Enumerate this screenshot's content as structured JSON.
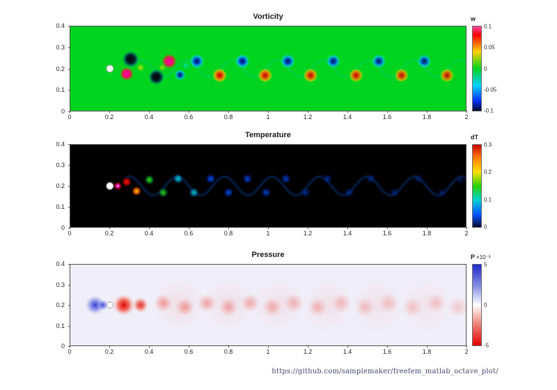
{
  "figure": {
    "footer_url": "https://github.com/samplemaker/freefem_matlab_octave_plot/"
  },
  "plots": [
    {
      "title": "Vorticity",
      "colorbar_label": "w"
    },
    {
      "title": "Temperature",
      "colorbar_label": "dT"
    },
    {
      "title": "Pressure",
      "colorbar_label": "P",
      "colorbar_multiplier": "×10⁻³"
    }
  ],
  "chart_data": [
    {
      "type": "heatmap",
      "title": "Vorticity",
      "field": "vorticity",
      "xlim": [
        0,
        2
      ],
      "ylim": [
        0,
        0.4
      ],
      "xticks": [
        "0",
        "0.2",
        "0.4",
        "0.6",
        "0.8",
        "1",
        "1.2",
        "1.4",
        "1.6",
        "1.8",
        "2"
      ],
      "yticks": [
        "0",
        "0.1",
        "0.2",
        "0.3",
        "0.4"
      ],
      "colorbar": {
        "label": "w",
        "range": [
          -0.1,
          0.1
        ],
        "ticks": [
          {
            "label": "0.1",
            "pos": 0
          },
          {
            "label": "0.05",
            "pos": 0.25
          },
          {
            "label": "0",
            "pos": 0.5
          },
          {
            "label": "-0.05",
            "pos": 0.75
          },
          {
            "label": "-0.1",
            "pos": 1
          }
        ],
        "stops": [
          [
            0,
            "#ff46a0"
          ],
          [
            0.1,
            "#ff0000"
          ],
          [
            0.3,
            "#ffd200"
          ],
          [
            0.5,
            "#00d41e"
          ],
          [
            0.7,
            "#00d2ff"
          ],
          [
            0.88,
            "#0032ff"
          ],
          [
            1,
            "#000a28"
          ]
        ]
      },
      "cylinder": {
        "x": 0.2,
        "y": 0.2,
        "r": 0.018
      },
      "render": {
        "bg": "#00d41e",
        "kinds": {
          "pos": [
            [
              0,
              "#b40000",
              1
            ],
            [
              0.4,
              "#ff3c00",
              0.95
            ],
            [
              0.72,
              "#ffb400",
              0.75
            ],
            [
              1,
              "#ffe100",
              0
            ]
          ],
          "neg": [
            [
              0,
              "#000f46",
              1
            ],
            [
              0.4,
              "#0041dc",
              0.95
            ],
            [
              0.72,
              "#00c8f0",
              0.75
            ],
            [
              1,
              "#00e6ff",
              0
            ]
          ],
          "mag": [
            [
              0,
              "#ff00b4",
              1
            ],
            [
              0.55,
              "#ff0064",
              0.9
            ],
            [
              1,
              "#ff4600",
              0
            ]
          ],
          "blk": [
            [
              0,
              "#000000",
              1
            ],
            [
              0.55,
              "#001430",
              0.9
            ],
            [
              1,
              "#0050c8",
              0
            ]
          ],
          "yel": [
            [
              0,
              "#ffe100",
              0.9
            ],
            [
              1,
              "#ffe100",
              0
            ]
          ],
          "cyn": [
            [
              0,
              "#00e6ff",
              0.85
            ],
            [
              1,
              "#00e6ff",
              0
            ]
          ]
        },
        "wave": {
          "amp": 0.04,
          "period": 0.23,
          "phase": 0.3,
          "color": "#00c8c8",
          "alpha": 0.22,
          "width": 3,
          "x0": 0.3,
          "x1": 2
        },
        "blobs": [
          [
            0.285,
            0.175,
            0.035,
            "mag",
            1
          ],
          [
            0.305,
            0.245,
            0.042,
            "blk",
            1
          ],
          [
            0.355,
            0.205,
            0.02,
            "yel",
            0.85
          ],
          [
            0.435,
            0.16,
            0.04,
            "blk",
            1
          ],
          [
            0.465,
            0.205,
            0.018,
            "yel",
            0.75
          ],
          [
            0.5,
            0.235,
            0.038,
            "mag",
            1
          ],
          [
            0.555,
            0.17,
            0.028,
            "neg",
            0.9
          ],
          [
            0.585,
            0.215,
            0.02,
            "cyn",
            0.7
          ],
          [
            0.64,
            0.235,
            0.036,
            "neg",
            1
          ],
          [
            0.755,
            0.168,
            0.036,
            "pos",
            1
          ],
          [
            0.87,
            0.235,
            0.036,
            "neg",
            1
          ],
          [
            0.985,
            0.168,
            0.036,
            "pos",
            0.97
          ],
          [
            1.1,
            0.235,
            0.036,
            "neg",
            0.96
          ],
          [
            1.215,
            0.168,
            0.036,
            "pos",
            0.95
          ],
          [
            1.33,
            0.235,
            0.035,
            "neg",
            0.94
          ],
          [
            1.445,
            0.168,
            0.035,
            "pos",
            0.93
          ],
          [
            1.56,
            0.235,
            0.035,
            "neg",
            0.92
          ],
          [
            1.675,
            0.168,
            0.035,
            "pos",
            0.91
          ],
          [
            1.79,
            0.235,
            0.035,
            "neg",
            0.9
          ],
          [
            1.905,
            0.168,
            0.035,
            "pos",
            0.89
          ]
        ]
      }
    },
    {
      "type": "heatmap",
      "title": "Temperature",
      "field": "temperature",
      "xlim": [
        0,
        2
      ],
      "ylim": [
        0,
        0.4
      ],
      "xticks": [
        "0",
        "0.2",
        "0.4",
        "0.6",
        "0.8",
        "1",
        "1.2",
        "1.4",
        "1.6",
        "1.8",
        "2"
      ],
      "yticks": [
        "0",
        "0.1",
        "0.2",
        "0.3",
        "0.4"
      ],
      "colorbar": {
        "label": "dT",
        "range": [
          0,
          0.3
        ],
        "ticks": [
          {
            "label": "0.3",
            "pos": 0
          },
          {
            "label": "0.2",
            "pos": 0.333
          },
          {
            "label": "0.1",
            "pos": 0.667
          },
          {
            "label": "0",
            "pos": 1
          }
        ],
        "stops": [
          [
            0,
            "#c80000"
          ],
          [
            0.15,
            "#ff7800"
          ],
          [
            0.33,
            "#ffe100"
          ],
          [
            0.5,
            "#28d200"
          ],
          [
            0.67,
            "#00d2d2"
          ],
          [
            0.85,
            "#0050ff"
          ],
          [
            1,
            "#000a32"
          ]
        ]
      },
      "cylinder": {
        "x": 0.2,
        "y": 0.2,
        "r": 0.018
      },
      "render": {
        "bg": "#000000",
        "kinds": {
          "hot": [
            [
              0,
              "#ffffff",
              1
            ],
            [
              0.35,
              "#ff00c8",
              0.95
            ],
            [
              0.7,
              "#b40000",
              0.7
            ],
            [
              1,
              "#500000",
              0
            ]
          ],
          "red": [
            [
              0,
              "#ff1e00",
              1
            ],
            [
              0.55,
              "#c80000",
              0.8
            ],
            [
              1,
              "#500000",
              0
            ]
          ],
          "org": [
            [
              0,
              "#ffc800",
              1
            ],
            [
              0.55,
              "#ff6400",
              0.8
            ],
            [
              1,
              "#501400",
              0
            ]
          ],
          "grn": [
            [
              0,
              "#46e100",
              1
            ],
            [
              0.55,
              "#00a032",
              0.75
            ],
            [
              1,
              "#002d14",
              0
            ]
          ],
          "cyn": [
            [
              0,
              "#00e1d2",
              1
            ],
            [
              0.55,
              "#0096c8",
              0.7
            ],
            [
              1,
              "#002d5a",
              0
            ]
          ],
          "blu": [
            [
              0,
              "#0064ff",
              0.95
            ],
            [
              0.55,
              "#0032c8",
              0.65
            ],
            [
              1,
              "#000a32",
              0
            ]
          ],
          "dim": [
            [
              0,
              "#0041b9",
              0.8
            ],
            [
              0.55,
              "#002387",
              0.5
            ],
            [
              1,
              "#000a28",
              0
            ]
          ]
        },
        "wave": {
          "amp": 0.045,
          "period": 0.24,
          "phase": 0,
          "color": "#0a3c8c",
          "alpha": 0.4,
          "width": 4,
          "x0": 0.28,
          "x1": 2
        },
        "blobs": [
          [
            0.24,
            0.2,
            0.022,
            "hot",
            1
          ],
          [
            0.285,
            0.22,
            0.026,
            "red",
            1
          ],
          [
            0.335,
            0.175,
            0.025,
            "org",
            1
          ],
          [
            0.4,
            0.23,
            0.026,
            "grn",
            1
          ],
          [
            0.47,
            0.168,
            0.026,
            "grn",
            0.92
          ],
          [
            0.545,
            0.235,
            0.026,
            "cyn",
            0.95
          ],
          [
            0.625,
            0.168,
            0.026,
            "cyn",
            0.88
          ],
          [
            0.71,
            0.235,
            0.027,
            "blu",
            0.95
          ],
          [
            0.8,
            0.168,
            0.027,
            "blu",
            0.9
          ],
          [
            0.895,
            0.235,
            0.027,
            "blu",
            0.85
          ],
          [
            0.99,
            0.168,
            0.027,
            "blu",
            0.8
          ],
          [
            1.09,
            0.235,
            0.027,
            "blu",
            0.75
          ],
          [
            1.19,
            0.168,
            0.027,
            "dim",
            1
          ],
          [
            1.3,
            0.235,
            0.028,
            "dim",
            0.92
          ],
          [
            1.41,
            0.168,
            0.028,
            "dim",
            0.85
          ],
          [
            1.52,
            0.235,
            0.028,
            "dim",
            0.78
          ],
          [
            1.64,
            0.168,
            0.028,
            "dim",
            0.7
          ],
          [
            1.76,
            0.235,
            0.028,
            "dim",
            0.62
          ],
          [
            1.88,
            0.168,
            0.028,
            "dim",
            0.55
          ],
          [
            1.97,
            0.23,
            0.026,
            "dim",
            0.5
          ]
        ]
      }
    },
    {
      "type": "heatmap",
      "title": "Pressure",
      "field": "pressure",
      "xlim": [
        0,
        2
      ],
      "ylim": [
        0,
        0.4
      ],
      "xticks": [
        "0",
        "0.2",
        "0.4",
        "0.6",
        "0.8",
        "1",
        "1.2",
        "1.4",
        "1.6",
        "1.8",
        "2"
      ],
      "yticks": [
        "0",
        "0.1",
        "0.2",
        "0.3",
        "0.4"
      ],
      "colorbar": {
        "label": "P",
        "multiplier": "×10⁻³",
        "range": [
          -0.005,
          0.005
        ],
        "ticks": [
          {
            "label": "5",
            "pos": 0
          },
          {
            "label": "0",
            "pos": 0.5
          },
          {
            "label": "-5",
            "pos": 1
          }
        ],
        "stops": [
          [
            0,
            "#1e28c8"
          ],
          [
            0.28,
            "#8c96e6"
          ],
          [
            0.5,
            "#ffffff"
          ],
          [
            0.72,
            "#f08c82"
          ],
          [
            1,
            "#e10000"
          ]
        ]
      },
      "cylinder": {
        "x": 0.2,
        "y": 0.2,
        "r": 0.016
      },
      "render": {
        "bg": "#f0eef8",
        "kinds": {
          "hi": [
            [
              0,
              "#2832d2",
              0.95
            ],
            [
              0.5,
              "#5a64e1",
              0.6
            ],
            [
              1,
              "#b4b9f0",
              0
            ]
          ],
          "lo": [
            [
              0,
              "#e10000",
              1
            ],
            [
              0.5,
              "#f04632",
              0.75
            ],
            [
              1,
              "#ffb4aa",
              0
            ]
          ],
          "lored": [
            [
              0,
              "#f05a50",
              0.75
            ],
            [
              1,
              "#f05a50",
              0
            ]
          ],
          "haze": [
            [
              0,
              "#f5b4b4",
              0.35
            ],
            [
              1,
              "#f5b4b4",
              0
            ]
          ]
        },
        "blobs": [
          [
            0.55,
            0.2,
            0.13,
            "haze",
            0.8
          ],
          [
            0.8,
            0.2,
            0.13,
            "haze",
            0.75
          ],
          [
            1.05,
            0.2,
            0.13,
            "haze",
            0.7
          ],
          [
            1.3,
            0.2,
            0.13,
            "haze",
            0.65
          ],
          [
            1.55,
            0.2,
            0.13,
            "haze",
            0.6
          ],
          [
            1.8,
            0.2,
            0.13,
            "haze",
            0.55
          ],
          [
            0.125,
            0.2,
            0.05,
            "hi",
            1
          ],
          [
            0.165,
            0.2,
            0.028,
            "hi",
            0.9
          ],
          [
            0.27,
            0.2,
            0.055,
            "lo",
            1
          ],
          [
            0.355,
            0.2,
            0.04,
            "lo",
            0.8
          ],
          [
            0.47,
            0.21,
            0.045,
            "lored",
            0.75
          ],
          [
            0.58,
            0.19,
            0.045,
            "lored",
            0.72
          ],
          [
            0.69,
            0.21,
            0.046,
            "lored",
            0.68
          ],
          [
            0.8,
            0.19,
            0.046,
            "lored",
            0.65
          ],
          [
            0.91,
            0.21,
            0.047,
            "lored",
            0.62
          ],
          [
            1.02,
            0.19,
            0.047,
            "lored",
            0.58
          ],
          [
            1.13,
            0.21,
            0.048,
            "lored",
            0.55
          ],
          [
            1.25,
            0.19,
            0.048,
            "lored",
            0.52
          ],
          [
            1.37,
            0.21,
            0.049,
            "lored",
            0.48
          ],
          [
            1.49,
            0.19,
            0.049,
            "lored",
            0.45
          ],
          [
            1.61,
            0.21,
            0.05,
            "lored",
            0.42
          ],
          [
            1.73,
            0.19,
            0.05,
            "lored",
            0.4
          ],
          [
            1.85,
            0.21,
            0.05,
            "lored",
            0.38
          ],
          [
            1.96,
            0.19,
            0.05,
            "lored",
            0.36
          ]
        ]
      }
    }
  ]
}
